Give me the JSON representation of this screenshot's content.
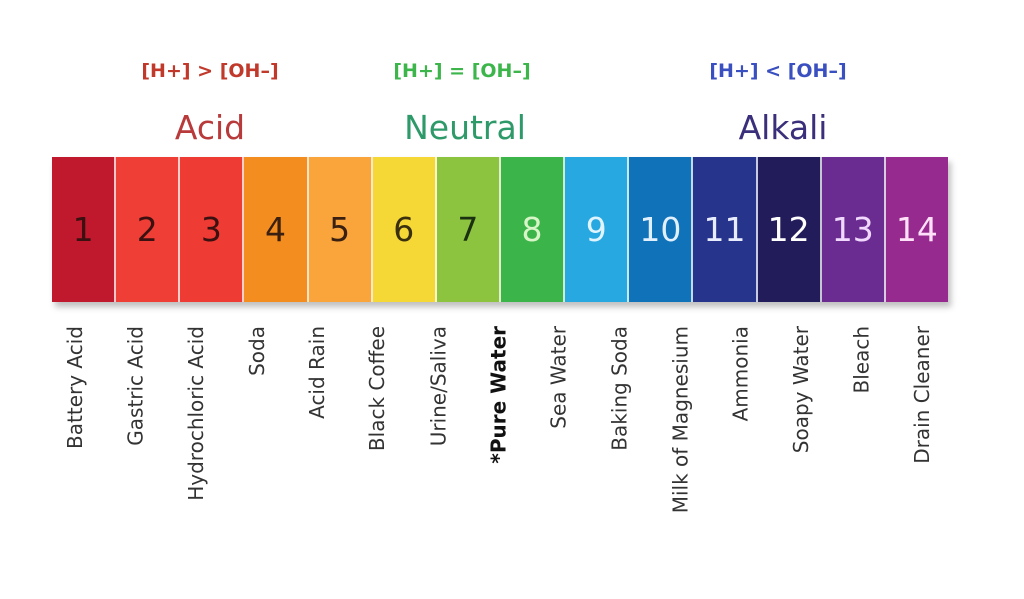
{
  "headers": [
    {
      "condition": "[H+]  > [OH–]",
      "category": "Acid",
      "color": "#c0392b",
      "cat_color": "#b83a3a"
    },
    {
      "condition": "[H+] = [OH–]",
      "category": "Neutral",
      "color": "#3cb54a",
      "cat_color": "#2e9a6a"
    },
    {
      "condition": "[H+] < [OH–]",
      "category": "Alkali",
      "color": "#3a4fc0",
      "cat_color": "#3a2f7a"
    }
  ],
  "scale": [
    {
      "value": "1",
      "color": "#c0192e",
      "text_color": "#3a1010",
      "label": "Battery Acid"
    },
    {
      "value": "2",
      "color": "#ef3e36",
      "text_color": "#3a1010",
      "label": "Gastric Acid"
    },
    {
      "value": "3",
      "color": "#ee3b33",
      "text_color": "#3a1010",
      "label": "Hydrochloric Acid"
    },
    {
      "value": "4",
      "color": "#f48d1f",
      "text_color": "#3a2010",
      "label": "Soda"
    },
    {
      "value": "5",
      "color": "#f9a53b",
      "text_color": "#3a2010",
      "label": "Acid Rain"
    },
    {
      "value": "6",
      "color": "#f5d836",
      "text_color": "#3a3010",
      "label": "Black Coffee"
    },
    {
      "value": "7",
      "color": "#8cc440",
      "text_color": "#1a3010",
      "label": "Urine/Saliva"
    },
    {
      "value": "8",
      "color": "#3bb54a",
      "text_color": "#d8f5c8",
      "label": "*Pure Water",
      "bold": true
    },
    {
      "value": "9",
      "color": "#27a8e0",
      "text_color": "#e0f4ff",
      "label": "Sea Water"
    },
    {
      "value": "10",
      "color": "#1072b8",
      "text_color": "#e0f0ff",
      "label": "Baking Soda"
    },
    {
      "value": "11",
      "color": "#27348b",
      "text_color": "#e8ecff",
      "label": "Milk of Magnesium"
    },
    {
      "value": "12",
      "color": "#231c5a",
      "text_color": "#ffffff",
      "label": "Ammonia"
    },
    {
      "value": "13",
      "color": "#6b2c91",
      "text_color": "#f0d8ff",
      "label": "Soapy Water"
    },
    {
      "value": "14",
      "color": "#962a8e",
      "text_color": "#ffe0f8",
      "label": "Bleach"
    }
  ],
  "extra_label": "Drain Cleaner"
}
